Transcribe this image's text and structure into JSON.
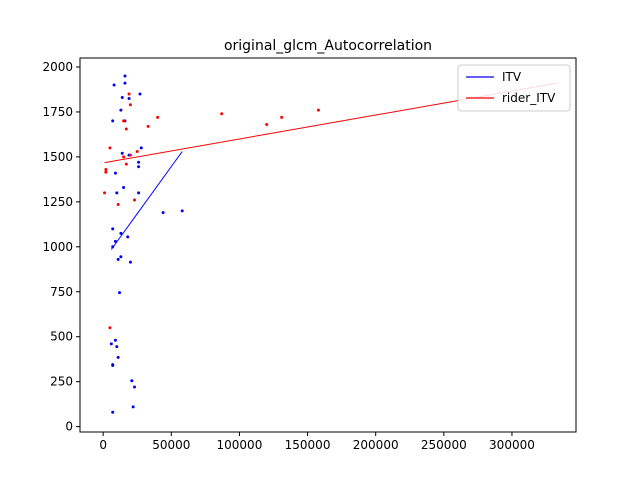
{
  "chart_data": {
    "type": "scatter",
    "title": "original_glcm_Autocorrelation",
    "xlabel": "",
    "ylabel": "",
    "xlim": [
      -17000,
      347000
    ],
    "ylim": [
      -30000,
      2050
    ],
    "ylim_actual": [
      -30,
      2050
    ],
    "xticks": [
      0,
      50000,
      100000,
      150000,
      200000,
      250000,
      300000
    ],
    "yticks": [
      0,
      250,
      500,
      750,
      1000,
      1250,
      1500,
      1750,
      2000
    ],
    "xtick_labels": [
      "0",
      "50000",
      "100000",
      "150000",
      "200000",
      "250000",
      "300000"
    ],
    "ytick_labels": [
      "0",
      "250",
      "500",
      "750",
      "1000",
      "1250",
      "1500",
      "1750",
      "2000"
    ],
    "legend": {
      "placement": "top-right",
      "entries": [
        "ITV",
        "rider_ITV"
      ]
    },
    "colors": {
      "ITV": "#0000ff",
      "rider_ITV": "#ff0000"
    },
    "series": [
      {
        "name": "ITV",
        "color": "#0000ff",
        "points": [
          [
            8000,
            1900
          ],
          [
            16000,
            1950
          ],
          [
            16000,
            1910
          ],
          [
            19000,
            1825
          ],
          [
            27000,
            1850
          ],
          [
            14000,
            1830
          ],
          [
            13000,
            1760
          ],
          [
            7000,
            1700
          ],
          [
            16000,
            1700
          ],
          [
            19000,
            1510
          ],
          [
            14000,
            1520
          ],
          [
            28000,
            1550
          ],
          [
            26000,
            1470
          ],
          [
            26000,
            1445
          ],
          [
            9000,
            1410
          ],
          [
            15000,
            1330
          ],
          [
            10000,
            1300
          ],
          [
            26000,
            1300
          ],
          [
            44000,
            1190
          ],
          [
            58000,
            1200
          ],
          [
            7000,
            1100
          ],
          [
            13000,
            1075
          ],
          [
            18000,
            1055
          ],
          [
            9000,
            1030
          ],
          [
            7000,
            1000
          ],
          [
            13000,
            945
          ],
          [
            11000,
            930
          ],
          [
            20000,
            915
          ],
          [
            12000,
            745
          ],
          [
            9000,
            480
          ],
          [
            6000,
            460
          ],
          [
            10000,
            445
          ],
          [
            11000,
            385
          ],
          [
            7000,
            345
          ],
          [
            7000,
            340
          ],
          [
            21000,
            255
          ],
          [
            23000,
            220
          ],
          [
            22000,
            110
          ],
          [
            7000,
            80
          ]
        ],
        "trend_line": [
          [
            6000,
            985
          ],
          [
            58000,
            1530
          ]
        ]
      },
      {
        "name": "rider_ITV",
        "color": "#ff0000",
        "points": [
          [
            19000,
            1850
          ],
          [
            20000,
            1790
          ],
          [
            33000,
            1670
          ],
          [
            40000,
            1720
          ],
          [
            87000,
            1740
          ],
          [
            120000,
            1680
          ],
          [
            131000,
            1720
          ],
          [
            158000,
            1760
          ],
          [
            15000,
            1700
          ],
          [
            17000,
            1655
          ],
          [
            5000,
            1550
          ],
          [
            25000,
            1530
          ],
          [
            20000,
            1510
          ],
          [
            15000,
            1500
          ],
          [
            17000,
            1460
          ],
          [
            2000,
            1430
          ],
          [
            2000,
            1415
          ],
          [
            11000,
            1235
          ],
          [
            23000,
            1260
          ],
          [
            1000,
            1300
          ],
          [
            5000,
            550
          ]
        ],
        "trend_line": [
          [
            1000,
            1468
          ],
          [
            333000,
            1910
          ]
        ]
      }
    ]
  }
}
